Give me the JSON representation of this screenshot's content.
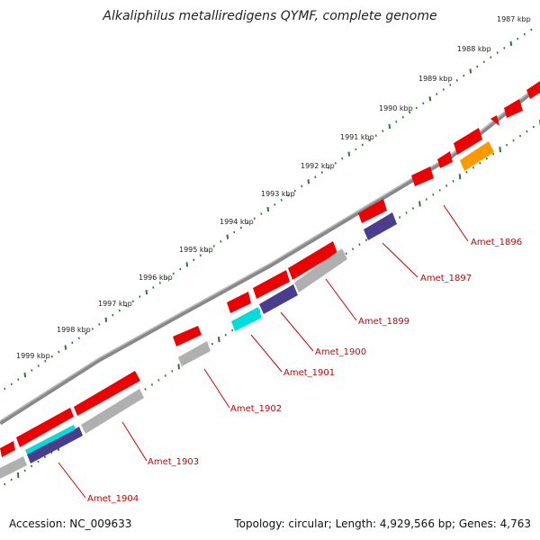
{
  "title": "Alkaliphilus metalliredigens QYMF, complete genome",
  "accession": "Accession: NC_009633",
  "summary": "Topology: circular; Length: 4,929,566 bp; Genes: 4,763",
  "scale_labels": [
    "1987 kbp",
    "1988 kbp",
    "1989 kbp",
    "1990 kbp",
    "1991 kbp",
    "1992 kbp",
    "1993 kbp",
    "1994 kbp",
    "1995 kbp",
    "1996 kbp",
    "1997 kbp",
    "1998 kbp",
    "1999 kbp"
  ],
  "gene_labels": [
    "Amet_1896",
    "Amet_1897",
    "Amet_1899",
    "Amet_1900",
    "Amet_1901",
    "Amet_1902",
    "Amet_1903",
    "Amet_1904"
  ],
  "colors": {
    "backbone": "#888888",
    "tick": "#2a7a2a",
    "cds_red": "#ee0000",
    "cds_gray": "#b0b0b0",
    "cds_navy": "#4a3d8f",
    "cds_cyan": "#00dddd",
    "cds_orange": "#ff9900",
    "label": "#cc0000"
  }
}
